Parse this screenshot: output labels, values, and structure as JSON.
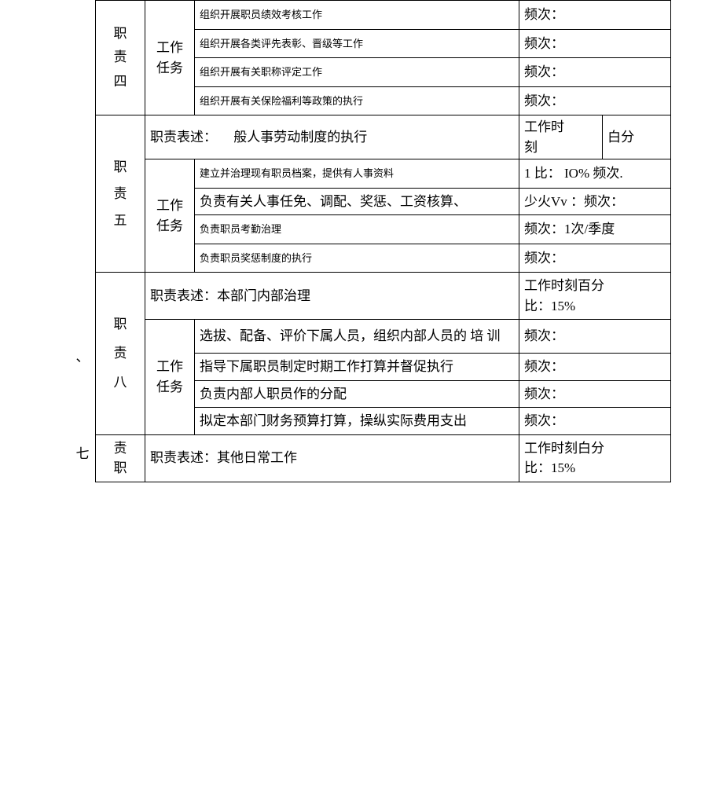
{
  "sections": {
    "s4": {
      "label": "职\n责\n四",
      "task_label": "工作\n任务",
      "tasks": [
        {
          "text": "组织开展职员绩效考核工作",
          "freq": "频次："
        },
        {
          "text": "组织开展各类评先表彰、晋级等工作",
          "freq": "频次："
        },
        {
          "text": "组织开展有关职称评定工作",
          "freq": "频次："
        },
        {
          "text": "组织开展有关保险福利等政策的执行",
          "freq": "频次："
        }
      ]
    },
    "s5": {
      "label": "职\n责\n五",
      "task_label": "工作\n任务",
      "desc_label": "职责表述：",
      "desc": "般人事劳动制度的执行",
      "time_l": "工作时\n刻",
      "time_r": "白分",
      "tasks": [
        {
          "text": "建立并治理现有职员档案，提供有人事资料",
          "freq": "1 比： IO% 频次."
        },
        {
          "text": "负责有关人事任免、调配、奖惩、工资核算、",
          "freq": "少火Vv ：频次："
        },
        {
          "text": "负责职员考勤治理",
          "freq": "频次：1次/季度"
        },
        {
          "text": "负责职员奖惩制度的执行",
          "freq": "频次："
        }
      ]
    },
    "s8": {
      "margin_mark": "、",
      "label": "职\n责\n八",
      "task_label": "工作\n任务",
      "desc_label": "职责表述：本部门内部治理",
      "time": "工作时刻百分\n比：15%",
      "tasks": [
        {
          "text": "选拔、配备、评价下属人员，组织内部人员的 培 训",
          "freq": "频次："
        },
        {
          "text": "指导下属职员制定时期工作打算并督促执行",
          "freq": "频次："
        },
        {
          "text": "负责内部人职员作的分配",
          "freq": "频次："
        },
        {
          "text": "拟定本部门财务预算打算，操纵实际费用支出",
          "freq": "频次："
        }
      ]
    },
    "s7": {
      "margin_mark": "七",
      "label": "责\n职",
      "desc_label": "职责表述：其他日常工作",
      "time": "工作时刻白分\n比：15%"
    }
  }
}
